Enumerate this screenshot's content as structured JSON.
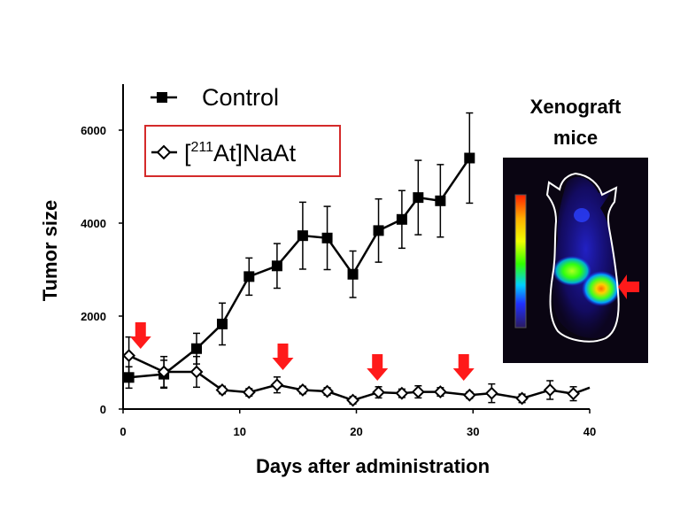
{
  "chart_data": {
    "type": "line",
    "title": "",
    "xlabel": "Days after administration",
    "ylabel": "Tumor size",
    "xlim": [
      0,
      40
    ],
    "ylim": [
      0,
      6500
    ],
    "xticks": [
      0,
      10,
      20,
      30,
      40
    ],
    "yticks": [
      0,
      2000,
      4000,
      6000
    ],
    "grid": false,
    "legend_position": "top-left",
    "series": [
      {
        "name": "Control",
        "marker": "filled-square",
        "color": "#000000",
        "x": [
          0.5,
          3.5,
          6.3,
          8.5,
          10.8,
          13.2,
          15.4,
          17.5,
          19.7,
          21.9,
          23.9,
          25.3,
          27.2,
          29.7
        ],
        "y": [
          680,
          750,
          1300,
          1830,
          2850,
          3080,
          3730,
          3680,
          2900,
          3840,
          4080,
          4550,
          4480,
          5400
        ],
        "error": [
          230,
          300,
          330,
          450,
          400,
          480,
          720,
          680,
          500,
          680,
          620,
          800,
          780,
          970
        ]
      },
      {
        "name": "[211At]NaAt",
        "name_parts": [
          "[",
          "211",
          "At]NaAt"
        ],
        "marker": "open-diamond",
        "color": "#000000",
        "x": [
          0.5,
          3.5,
          6.3,
          8.5,
          10.8,
          13.2,
          15.4,
          17.5,
          19.7,
          21.9,
          23.9,
          25.3,
          27.2,
          29.7,
          31.6,
          34.2,
          36.6,
          38.6
        ],
        "y": [
          1150,
          800,
          800,
          410,
          360,
          520,
          410,
          380,
          190,
          360,
          340,
          370,
          370,
          300,
          340,
          230,
          410,
          330
        ],
        "error": [
          400,
          330,
          330,
          80,
          80,
          170,
          80,
          80,
          80,
          120,
          90,
          130,
          90,
          70,
          200,
          90,
          200,
          150
        ],
        "trailing_x": 40
      }
    ],
    "annotations": {
      "dose_arrows_days": [
        1.5,
        13.7,
        21.8,
        29.2
      ],
      "arrow_color": "#ff1a1a"
    }
  },
  "inset": {
    "title_line1": "Xenograft",
    "title_line2": "mice",
    "scale_colors": [
      "#ff2000",
      "#ffd000",
      "#30ff00",
      "#00b0ff",
      "#2030ff",
      "#3a2390"
    ],
    "arrow_color": "#ff1a1a",
    "background": "#0a0512"
  }
}
